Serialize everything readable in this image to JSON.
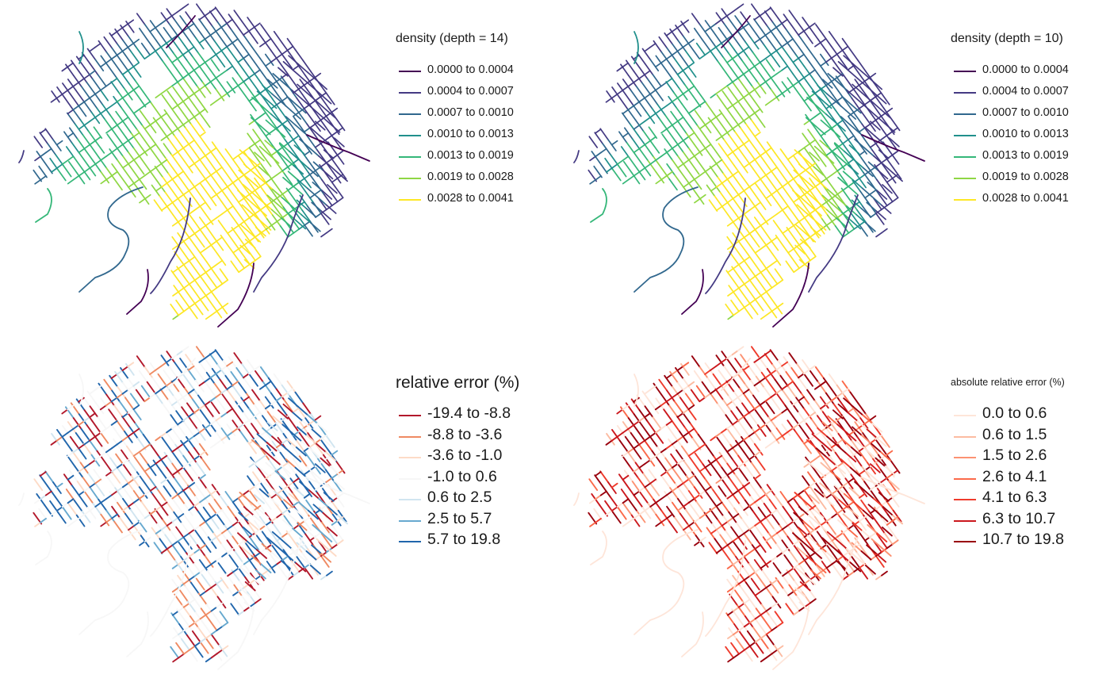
{
  "panels": [
    {
      "id": "density14",
      "legend_title": "density (depth = 14)",
      "palette": "viridis",
      "legend": [
        {
          "label": "0.0000 to 0.0004",
          "color": "#440154"
        },
        {
          "label": "0.0004 to 0.0007",
          "color": "#443a83"
        },
        {
          "label": "0.0007 to 0.0010",
          "color": "#31688e"
        },
        {
          "label": "0.0010 to 0.0013",
          "color": "#21908c"
        },
        {
          "label": "0.0013 to 0.0019",
          "color": "#35b779"
        },
        {
          "label": "0.0019 to 0.0028",
          "color": "#8fd744"
        },
        {
          "label": "0.0028 to 0.0041",
          "color": "#fde725"
        }
      ]
    },
    {
      "id": "density10",
      "legend_title": "density (depth = 10)",
      "palette": "viridis",
      "legend": [
        {
          "label": "0.0000 to 0.0004",
          "color": "#440154"
        },
        {
          "label": "0.0004 to 0.0007",
          "color": "#443a83"
        },
        {
          "label": "0.0007 to 0.0010",
          "color": "#31688e"
        },
        {
          "label": "0.0010 to 0.0013",
          "color": "#21908c"
        },
        {
          "label": "0.0013 to 0.0019",
          "color": "#35b779"
        },
        {
          "label": "0.0019 to 0.0028",
          "color": "#8fd744"
        },
        {
          "label": "0.0028 to 0.0041",
          "color": "#fde725"
        }
      ]
    },
    {
      "id": "relerr",
      "legend_title": "relative error (%)",
      "palette": "RdBu",
      "legend": [
        {
          "label": "-19.4 to -8.8",
          "color": "#b2182b"
        },
        {
          "label": "-8.8 to -3.6",
          "color": "#ef8a62"
        },
        {
          "label": "-3.6 to -1.0",
          "color": "#fddbc7"
        },
        {
          "label": "-1.0 to 0.6",
          "color": "#f7f7f7"
        },
        {
          "label": "0.6 to 2.5",
          "color": "#d1e5f0"
        },
        {
          "label": "2.5 to 5.7",
          "color": "#67a9cf"
        },
        {
          "label": "5.7 to 19.8",
          "color": "#2166ac"
        }
      ]
    },
    {
      "id": "absrelerr",
      "legend_title": "absolute relative error (%)",
      "palette": "Reds",
      "legend": [
        {
          "label": "0.0 to 0.6",
          "color": "#fee5d9"
        },
        {
          "label": "0.6 to 1.5",
          "color": "#fcbba1"
        },
        {
          "label": "1.5 to 2.6",
          "color": "#fc9272"
        },
        {
          "label": "2.6 to 4.1",
          "color": "#fb6a4a"
        },
        {
          "label": "4.1 to 6.3",
          "color": "#ef3b2c"
        },
        {
          "label": "6.3 to 10.7",
          "color": "#cb181d"
        },
        {
          "label": "10.7 to 19.8",
          "color": "#99000d"
        }
      ]
    }
  ]
}
